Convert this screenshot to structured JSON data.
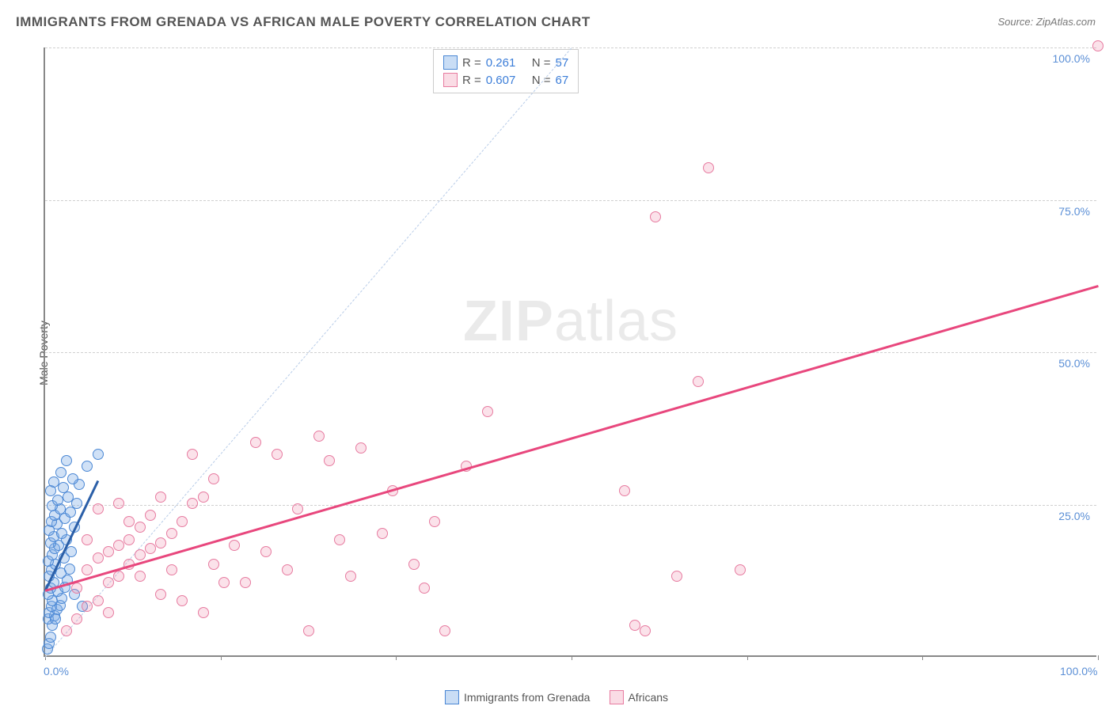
{
  "title": "IMMIGRANTS FROM GRENADA VS AFRICAN MALE POVERTY CORRELATION CHART",
  "source_prefix": "Source: ",
  "source_name": "ZipAtlas.com",
  "watermark": {
    "bold": "ZIP",
    "light": "atlas"
  },
  "chart": {
    "type": "scatter",
    "xlim": [
      0,
      100
    ],
    "ylim": [
      0,
      100
    ],
    "background_color": "#ffffff",
    "grid_color": "#d0d0d0",
    "axis_color": "#888888",
    "tick_label_color": "#5b8fd6",
    "ylabel": "Male Poverty",
    "ylabel_color": "#555555",
    "ylabel_fontsize": 14,
    "xtick_positions": [
      0,
      16.67,
      33.33,
      50,
      66.67,
      83.33,
      100
    ],
    "xtick_labels_shown": {
      "0": "0.0%",
      "100": "100.0%"
    },
    "ygrid_positions": [
      25,
      50,
      75,
      100
    ],
    "ytick_labels": {
      "25": "25.0%",
      "50": "50.0%",
      "75": "75.0%",
      "100": "100.0%"
    },
    "marker_radius": 7,
    "diagonal_guide": {
      "color": "#b8cce8",
      "dash": true,
      "from": [
        0,
        0
      ],
      "to": [
        50,
        100
      ]
    },
    "series": [
      {
        "name": "Immigrants from Grenada",
        "color_fill": "rgba(120,170,230,0.35)",
        "color_stroke": "#4a87d4",
        "r": 0.261,
        "n": 57,
        "trend": {
          "from": [
            0,
            11
          ],
          "to": [
            5,
            29
          ],
          "color": "#2b5fa8",
          "width": 2.5
        },
        "points": [
          [
            0.2,
            1
          ],
          [
            0.4,
            2
          ],
          [
            0.5,
            3
          ],
          [
            0.7,
            5
          ],
          [
            0.3,
            6
          ],
          [
            0.9,
            6.5
          ],
          [
            0.4,
            7
          ],
          [
            1.1,
            7.5
          ],
          [
            0.6,
            8
          ],
          [
            1.4,
            8.2
          ],
          [
            0.7,
            9
          ],
          [
            1.6,
            9.3
          ],
          [
            0.3,
            10
          ],
          [
            1.2,
            10.5
          ],
          [
            0.5,
            11
          ],
          [
            1.9,
            11.2
          ],
          [
            0.8,
            12
          ],
          [
            2.1,
            12.3
          ],
          [
            0.4,
            13
          ],
          [
            1.5,
            13.5
          ],
          [
            0.6,
            14
          ],
          [
            2.3,
            14.2
          ],
          [
            1.0,
            15
          ],
          [
            0.3,
            15.5
          ],
          [
            1.8,
            16
          ],
          [
            0.7,
            16.5
          ],
          [
            2.5,
            17
          ],
          [
            0.9,
            17.5
          ],
          [
            1.3,
            18
          ],
          [
            0.5,
            18.5
          ],
          [
            2.0,
            19
          ],
          [
            0.8,
            19.5
          ],
          [
            1.6,
            20
          ],
          [
            0.4,
            20.5
          ],
          [
            2.8,
            21
          ],
          [
            1.1,
            21.5
          ],
          [
            0.6,
            22
          ],
          [
            1.9,
            22.5
          ],
          [
            0.9,
            23
          ],
          [
            2.4,
            23.5
          ],
          [
            1.4,
            24
          ],
          [
            0.7,
            24.5
          ],
          [
            3.0,
            25
          ],
          [
            1.2,
            25.5
          ],
          [
            2.2,
            26
          ],
          [
            0.5,
            27
          ],
          [
            1.7,
            27.5
          ],
          [
            3.2,
            28
          ],
          [
            0.8,
            28.5
          ],
          [
            2.6,
            29
          ],
          [
            1.5,
            30
          ],
          [
            4.0,
            31
          ],
          [
            2.0,
            32
          ],
          [
            5.0,
            33
          ],
          [
            1.0,
            6
          ],
          [
            3.5,
            8
          ],
          [
            2.8,
            10
          ]
        ]
      },
      {
        "name": "Africans",
        "color_fill": "rgba(240,140,170,0.25)",
        "color_stroke": "#e77ba0",
        "r": 0.607,
        "n": 67,
        "trend": {
          "from": [
            0,
            11
          ],
          "to": [
            100,
            61
          ],
          "color": "#e8477d",
          "width": 2.5
        },
        "points": [
          [
            2,
            4
          ],
          [
            3,
            6
          ],
          [
            4,
            8
          ],
          [
            5,
            9
          ],
          [
            3,
            11
          ],
          [
            6,
            12
          ],
          [
            7,
            13
          ],
          [
            4,
            14
          ],
          [
            8,
            15
          ],
          [
            5,
            16
          ],
          [
            9,
            16.5
          ],
          [
            6,
            17
          ],
          [
            10,
            17.5
          ],
          [
            7,
            18
          ],
          [
            11,
            18.5
          ],
          [
            8,
            19
          ],
          [
            12,
            20
          ],
          [
            9,
            21
          ],
          [
            13,
            22
          ],
          [
            10,
            23
          ],
          [
            14,
            25
          ],
          [
            11,
            26
          ],
          [
            15,
            7
          ],
          [
            12,
            14
          ],
          [
            16,
            15
          ],
          [
            13,
            9
          ],
          [
            17,
            12
          ],
          [
            14,
            33
          ],
          [
            18,
            18
          ],
          [
            15,
            26
          ],
          [
            19,
            12
          ],
          [
            16,
            29
          ],
          [
            20,
            35
          ],
          [
            21,
            17
          ],
          [
            22,
            33
          ],
          [
            23,
            14
          ],
          [
            24,
            24
          ],
          [
            25,
            4
          ],
          [
            26,
            36
          ],
          [
            27,
            32
          ],
          [
            28,
            19
          ],
          [
            29,
            13
          ],
          [
            30,
            34
          ],
          [
            32,
            20
          ],
          [
            33,
            27
          ],
          [
            35,
            15
          ],
          [
            36,
            11
          ],
          [
            37,
            22
          ],
          [
            38,
            4
          ],
          [
            40,
            31
          ],
          [
            42,
            40
          ],
          [
            55,
            27
          ],
          [
            56,
            5
          ],
          [
            57,
            4
          ],
          [
            58,
            72
          ],
          [
            60,
            13
          ],
          [
            62,
            45
          ],
          [
            63,
            80
          ],
          [
            66,
            14
          ],
          [
            100,
            100
          ],
          [
            5,
            24
          ],
          [
            8,
            22
          ],
          [
            11,
            10
          ],
          [
            6,
            7
          ],
          [
            7,
            25
          ],
          [
            9,
            13
          ],
          [
            4,
            19
          ]
        ]
      }
    ]
  },
  "stats_legend": {
    "rows": [
      {
        "swatch": "blue",
        "r_label": "R =",
        "r_val": "0.261",
        "n_label": "N =",
        "n_val": "57"
      },
      {
        "swatch": "pink",
        "r_label": "R =",
        "r_val": "0.607",
        "n_label": "N =",
        "n_val": "67"
      }
    ]
  },
  "bottom_legend": [
    {
      "swatch": "blue",
      "label": "Immigrants from Grenada"
    },
    {
      "swatch": "pink",
      "label": "Africans"
    }
  ]
}
